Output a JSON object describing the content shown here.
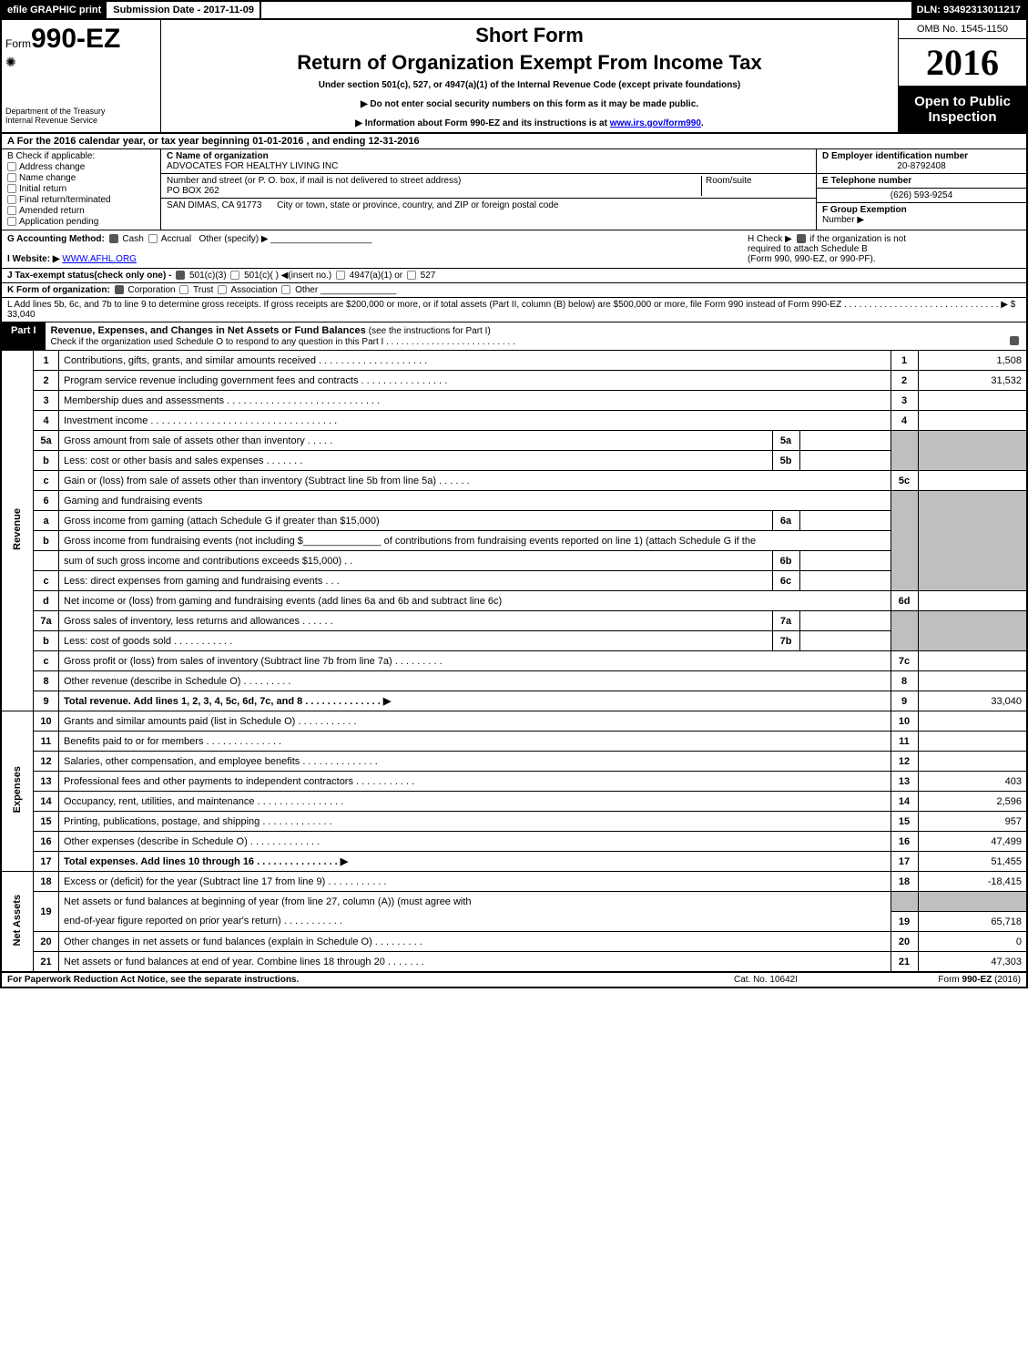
{
  "top_bar": {
    "efile": "efile GRAPHIC print",
    "submission": "Submission Date - 2017-11-09",
    "dln": "DLN: 93492313011217"
  },
  "header": {
    "form_prefix": "Form",
    "form_number": "990-EZ",
    "short_form": "Short Form",
    "return_title": "Return of Organization Exempt From Income Tax",
    "under_section": "Under section 501(c), 527, or 4947(a)(1) of the Internal Revenue Code (except private foundations)",
    "no_ssn": "▶ Do not enter social security numbers on this form as it may be made public.",
    "info_about": "▶ Information about Form 990-EZ and its instructions is at ",
    "info_link": "www.irs.gov/form990",
    "info_period": ".",
    "treasury1": "Department of the Treasury",
    "treasury2": "Internal Revenue Service",
    "omb": "OMB No. 1545-1150",
    "year": "2016",
    "open1": "Open to Public",
    "open2": "Inspection"
  },
  "section_a": {
    "line": "A  For the 2016 calendar year, or tax year beginning 01-01-2016                       , and ending 12-31-2016"
  },
  "section_b": {
    "title": "B  Check if applicable:",
    "items": [
      "Address change",
      "Name change",
      "Initial return",
      "Final return/terminated",
      "Amended return",
      "Application pending"
    ]
  },
  "section_c": {
    "label": "C Name of organization",
    "name": "ADVOCATES FOR HEALTHY LIVING INC",
    "addr_label": "Number and street (or P. O. box, if mail is not delivered to street address)",
    "addr": "PO BOX 262",
    "room_label": "Room/suite",
    "city_label": "City or town, state or province, country, and ZIP or foreign postal code",
    "city": "SAN DIMAS, CA  91773"
  },
  "section_d": {
    "label": "D Employer identification number",
    "value": "20-8792408"
  },
  "section_e": {
    "label": "E Telephone number",
    "value": "(626) 593-9254"
  },
  "section_f": {
    "label": "F Group Exemption",
    "label2": "Number    ▶"
  },
  "section_g": {
    "label": "G Accounting Method:",
    "cash": "Cash",
    "accrual": "Accrual",
    "other": "Other (specify) ▶"
  },
  "section_h": {
    "text1": "H   Check ▶",
    "text2": "if the organization is not",
    "text3": "required to attach Schedule B",
    "text4": "(Form 990, 990-EZ, or 990-PF)."
  },
  "section_i": {
    "label": "I Website: ▶",
    "value": "WWW.AFHL.ORG"
  },
  "section_j": {
    "text": "J Tax-exempt status(check only one) -",
    "opts": [
      "501(c)(3)",
      "501(c)(  ) ◀(insert no.)",
      "4947(a)(1) or",
      "527"
    ]
  },
  "section_k": {
    "text": "K Form of organization:",
    "opts": [
      "Corporation",
      "Trust",
      "Association",
      "Other"
    ]
  },
  "section_l": {
    "text": "L Add lines 5b, 6c, and 7b to line 9 to determine gross receipts. If gross receipts are $200,000 or more, or if total assets (Part II, column (B) below) are $500,000 or more, file Form 990 instead of Form 990-EZ  . . . . . . . . . . . . . . . . . . . . . . . . . . . . . . . ▶ $ 33,040"
  },
  "part1": {
    "label": "Part I",
    "title": "Revenue, Expenses, and Changes in Net Assets or Fund Balances",
    "sub": "(see the instructions for Part I)",
    "check_line": "Check if the organization used Schedule O to respond to any question in this Part I . . . . . . . . . . . . . . . . . . . . . . . . . ."
  },
  "rotated": {
    "revenue": "Revenue",
    "expenses": "Expenses",
    "netassets": "Net Assets"
  },
  "lines": {
    "l1": {
      "num": "1",
      "desc": "Contributions, gifts, grants, and similar amounts received . . . . . . . . . . . . . . . . . . . .",
      "rnum": "1",
      "val": "1,508"
    },
    "l2": {
      "num": "2",
      "desc": "Program service revenue including government fees and contracts . . . . . . . . . . . . . . . .",
      "rnum": "2",
      "val": "31,532"
    },
    "l3": {
      "num": "3",
      "desc": "Membership dues and assessments . . . . . . . . . . . . . . . . . . . . . . . . . . . .",
      "rnum": "3",
      "val": ""
    },
    "l4": {
      "num": "4",
      "desc": "Investment income . . . . . . . . . . . . . . . . . . . . . . . . . . . . . . . . . .",
      "rnum": "4",
      "val": ""
    },
    "l5a": {
      "num": "5a",
      "desc": "Gross amount from sale of assets other than inventory . . . . .",
      "mid": "5a"
    },
    "l5b": {
      "num": "b",
      "desc": "Less: cost or other basis and sales expenses . . . . . . .",
      "mid": "5b"
    },
    "l5c": {
      "num": "c",
      "desc": "Gain or (loss) from sale of assets other than inventory (Subtract line 5b from line 5a)              .   .   .   .   .   .",
      "rnum": "5c",
      "val": ""
    },
    "l6": {
      "num": "6",
      "desc": "Gaming and fundraising events"
    },
    "l6a": {
      "num": "a",
      "desc": "Gross income from gaming (attach Schedule G if greater than $15,000)",
      "mid": "6a"
    },
    "l6b": {
      "num": "b",
      "desc_pre": "Gross income from fundraising events (not including $",
      "desc_post": " of contributions from fundraising events reported on line 1) (attach Schedule G if the",
      "desc2": "sum of such gross income and contributions exceeds $15,000)      .   .",
      "mid": "6b"
    },
    "l6c": {
      "num": "c",
      "desc": "Less: direct expenses from gaming and fundraising events          .   .   .",
      "mid": "6c"
    },
    "l6d": {
      "num": "d",
      "desc": "Net income or (loss) from gaming and fundraising events (add lines 6a and 6b and subtract line 6c)",
      "rnum": "6d",
      "val": ""
    },
    "l7a": {
      "num": "7a",
      "desc": "Gross sales of inventory, less returns and allowances            .   .   .   .   .   .",
      "mid": "7a"
    },
    "l7b": {
      "num": "b",
      "desc": "Less: cost of goods sold                     .   .   .   .   .   .   .   .   .   .   .",
      "mid": "7b"
    },
    "l7c": {
      "num": "c",
      "desc": "Gross profit or (loss) from sales of inventory (Subtract line 7b from line 7a)           .   .   .   .   .   .   .   .   .",
      "rnum": "7c",
      "val": ""
    },
    "l8": {
      "num": "8",
      "desc": "Other revenue (describe in Schedule O)                                 .   .   .   .   .   .   .   .   .",
      "rnum": "8",
      "val": ""
    },
    "l9": {
      "num": "9",
      "desc": "Total revenue. Add lines 1, 2, 3, 4, 5c, 6d, 7c, and 8          .   .   .   .   .   .   .   .   .   .   .   .   .   .   ▶",
      "rnum": "9",
      "val": "33,040"
    },
    "l10": {
      "num": "10",
      "desc": "Grants and similar amounts paid (list in Schedule O)                 .   .   .   .   .   .   .   .   .   .   .",
      "rnum": "10",
      "val": ""
    },
    "l11": {
      "num": "11",
      "desc": "Benefits paid to or for members                         .   .   .   .   .   .   .   .   .   .   .   .   .   .",
      "rnum": "11",
      "val": ""
    },
    "l12": {
      "num": "12",
      "desc": "Salaries, other compensation, and employee benefits          .   .   .   .   .   .   .   .   .   .   .   .   .   .",
      "rnum": "12",
      "val": ""
    },
    "l13": {
      "num": "13",
      "desc": "Professional fees and other payments to independent contractors       .   .   .   .   .   .   .   .   .   .   .",
      "rnum": "13",
      "val": "403"
    },
    "l14": {
      "num": "14",
      "desc": "Occupancy, rent, utilities, and maintenance           .   .   .   .   .   .   .   .   .   .   .   .   .   .   .   .",
      "rnum": "14",
      "val": "2,596"
    },
    "l15": {
      "num": "15",
      "desc": "Printing, publications, postage, and shipping                  .   .   .   .   .   .   .   .   .   .   .   .   .",
      "rnum": "15",
      "val": "957"
    },
    "l16": {
      "num": "16",
      "desc": "Other expenses (describe in Schedule O)                     .   .   .   .   .   .   .   .   .   .   .   .   .",
      "rnum": "16",
      "val": "47,499"
    },
    "l17": {
      "num": "17",
      "desc": "Total expenses. Add lines 10 through 16               .   .   .   .   .   .   .   .   .   .   .   .   .   .   .   ▶",
      "rnum": "17",
      "val": "51,455"
    },
    "l18": {
      "num": "18",
      "desc": "Excess or (deficit) for the year (Subtract line 17 from line 9)              .   .   .   .   .   .   .   .   .   .   .",
      "rnum": "18",
      "val": "-18,415"
    },
    "l19": {
      "num": "19",
      "desc": "Net assets or fund balances at beginning of year (from line 27, column (A)) (must agree with",
      "desc2": "end-of-year figure reported on prior year's return)                   .   .   .   .   .   .   .   .   .   .   .",
      "rnum": "19",
      "val": "65,718"
    },
    "l20": {
      "num": "20",
      "desc": "Other changes in net assets or fund balances (explain in Schedule O)        .   .   .   .   .   .   .   .   .",
      "rnum": "20",
      "val": "0"
    },
    "l21": {
      "num": "21",
      "desc": "Net assets or fund balances at end of year. Combine lines 18 through 20            .   .   .   .   .   .   .",
      "rnum": "21",
      "val": "47,303"
    }
  },
  "footer": {
    "left": "For Paperwork Reduction Act Notice, see the separate instructions.",
    "center": "Cat. No. 10642I",
    "right_pre": "Form ",
    "right_bold": "990-EZ",
    "right_post": " (2016)"
  },
  "colors": {
    "black": "#000000",
    "white": "#ffffff",
    "gray_fill": "#bfbfbf",
    "link": "#0000ee"
  }
}
